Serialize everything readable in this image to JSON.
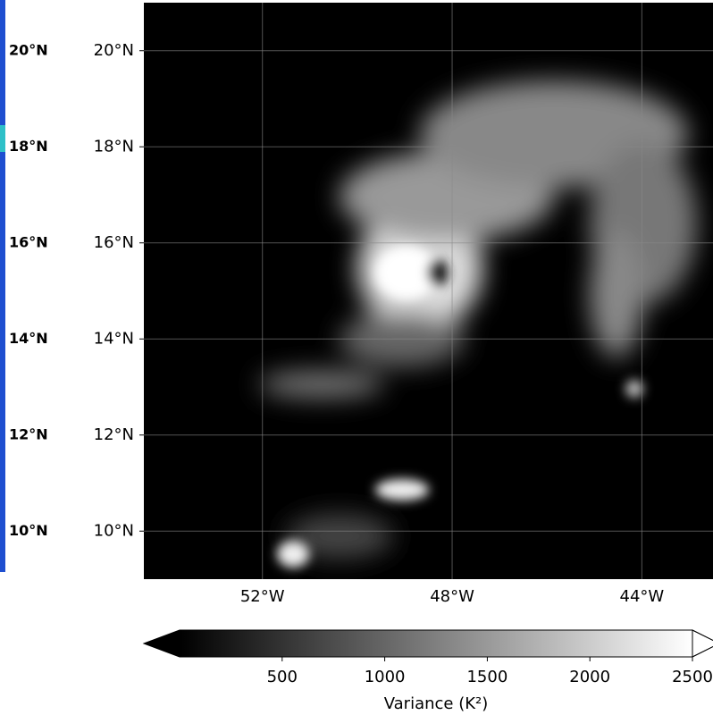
{
  "map": {
    "side_panel_labels": [
      "20°N",
      "18°N",
      "16°N",
      "14°N",
      "12°N",
      "10°N"
    ],
    "latlim": [
      9,
      21
    ],
    "lonlim": [
      -54.5,
      -42.5
    ],
    "yticks": [
      {
        "value": 20,
        "label": "20°N"
      },
      {
        "value": 18,
        "label": "18°N"
      },
      {
        "value": 16,
        "label": "16°N"
      },
      {
        "value": 14,
        "label": "14°N"
      },
      {
        "value": 12,
        "label": "12°N"
      },
      {
        "value": 10,
        "label": "10°N"
      }
    ],
    "xticks": [
      {
        "value": -52,
        "label": "52°W"
      },
      {
        "value": -48,
        "label": "48°W"
      },
      {
        "value": -44,
        "label": "44°W"
      }
    ],
    "grid": true,
    "colorbar": {
      "label": "Variance (K²)",
      "lim": [
        0,
        2500
      ],
      "ticks": [
        500,
        1000,
        1500,
        2000,
        2500
      ],
      "colors": [
        "#000000",
        "#ffffff"
      ]
    }
  }
}
